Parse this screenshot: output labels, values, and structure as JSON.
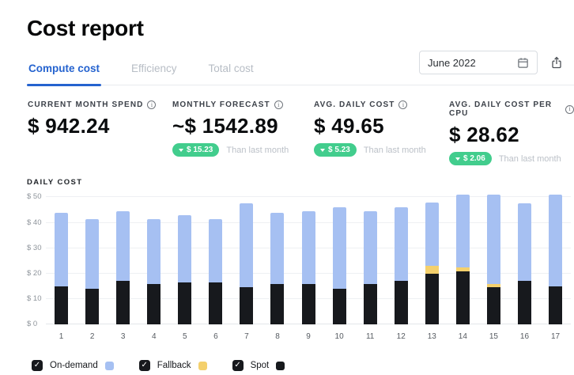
{
  "header": {
    "title": "Cost report",
    "tabs": [
      {
        "label": "Compute cost",
        "active": true
      },
      {
        "label": "Efficiency",
        "active": false
      },
      {
        "label": "Total cost",
        "active": false
      }
    ],
    "date_picker": {
      "value": "June 2022"
    },
    "icons": [
      "calendar-icon",
      "share-icon"
    ]
  },
  "kpis": [
    {
      "label": "CURRENT MONTH SPEND",
      "value": "$ 942.24"
    },
    {
      "label": "MONTHLY FORECAST",
      "value": "~$ 1542.89",
      "delta": "$ 15.23",
      "delta_direction": "down",
      "delta_note": "Than last month"
    },
    {
      "label": "AVG. DAILY COST",
      "value": "$ 49.65",
      "delta": "$ 5.23",
      "delta_direction": "down",
      "delta_note": "Than last month"
    },
    {
      "label": "AVG. DAILY COST PER CPU",
      "value": "$ 28.62",
      "delta": "$ 2.06",
      "delta_direction": "down",
      "delta_note": "Than last month"
    }
  ],
  "chart_data": {
    "type": "bar",
    "stacked": true,
    "title": "DAILY COST",
    "categories": [
      "1",
      "2",
      "3",
      "4",
      "5",
      "6",
      "7",
      "8",
      "9",
      "10",
      "11",
      "12",
      "13",
      "14",
      "15",
      "16",
      "17"
    ],
    "series": [
      {
        "name": "Spot",
        "color": "#17191d",
        "values": [
          15,
          14,
          17,
          16,
          16.5,
          16.5,
          14.5,
          16,
          16,
          14,
          16,
          17,
          20,
          21,
          14.5,
          17,
          15
        ]
      },
      {
        "name": "Fallback",
        "color": "#f4d06c",
        "values": [
          0,
          0,
          0,
          0,
          0,
          0,
          0,
          0,
          0,
          0,
          0,
          0,
          3,
          1.5,
          1.5,
          0,
          0
        ]
      },
      {
        "name": "On-demand",
        "color": "#a6c0f2",
        "values": [
          29,
          27.5,
          27.5,
          25.5,
          26.5,
          25,
          33,
          28,
          28.5,
          32,
          28.5,
          29,
          25,
          28.5,
          35,
          30.5,
          36
        ]
      }
    ],
    "yticks": [
      {
        "value": 0,
        "label": "$ 0"
      },
      {
        "value": 10,
        "label": "$ 10"
      },
      {
        "value": 20,
        "label": "$ 20"
      },
      {
        "value": 30,
        "label": "$ 30"
      },
      {
        "value": 40,
        "label": "$ 40"
      },
      {
        "value": 50,
        "label": "$ 50"
      }
    ],
    "ylim": [
      0,
      52
    ],
    "grid": "horizontal",
    "legend_position": "bottom"
  },
  "legend": {
    "items": [
      {
        "label": "On-demand",
        "checked": true,
        "swatch_color": "#a6c0f2"
      },
      {
        "label": "Fallback",
        "checked": true,
        "swatch_color": "#f4d06c"
      },
      {
        "label": "Spot",
        "checked": true,
        "swatch_color": "#17191d"
      }
    ]
  },
  "colors": {
    "accent_blue": "#2563cf",
    "badge_green": "#42cd8d",
    "on_demand": "#a6c0f2",
    "fallback": "#f4d06c",
    "spot": "#17191d"
  }
}
